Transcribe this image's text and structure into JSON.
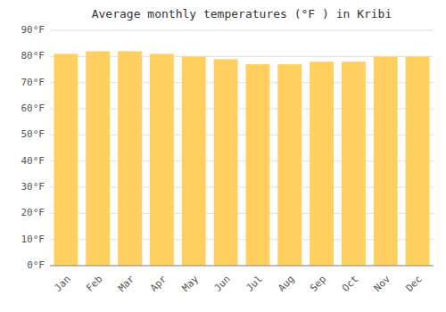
{
  "chart_data": {
    "type": "bar",
    "title": "Average monthly temperatures (°F ) in Kribi",
    "categories": [
      "Jan",
      "Feb",
      "Mar",
      "Apr",
      "May",
      "Jun",
      "Jul",
      "Aug",
      "Sep",
      "Oct",
      "Nov",
      "Dec"
    ],
    "values": [
      81,
      82,
      82,
      81,
      80,
      79,
      77,
      77,
      78,
      78,
      80,
      80
    ],
    "color": "#FFD060",
    "ylim": [
      0,
      90
    ],
    "yticks": [
      {
        "value": 0,
        "label": "0°F"
      },
      {
        "value": 10,
        "label": "10°F"
      },
      {
        "value": 20,
        "label": "20°F"
      },
      {
        "value": 30,
        "label": "30°F"
      },
      {
        "value": 40,
        "label": "40°F"
      },
      {
        "value": 50,
        "label": "50°F"
      },
      {
        "value": 60,
        "label": "60°F"
      },
      {
        "value": 70,
        "label": "70°F"
      },
      {
        "value": 80,
        "label": "80°F"
      },
      {
        "value": 90,
        "label": "90°F"
      }
    ],
    "grid": true
  }
}
